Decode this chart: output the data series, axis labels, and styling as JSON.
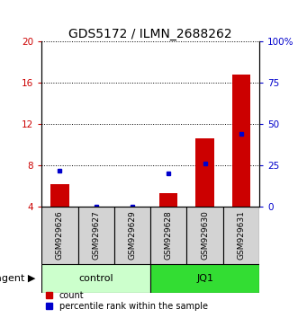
{
  "title": "GDS5172 / ILMN_2688262",
  "samples": [
    "GSM929626",
    "GSM929627",
    "GSM929629",
    "GSM929628",
    "GSM929630",
    "GSM929631"
  ],
  "groups": [
    "control",
    "control",
    "control",
    "JQ1",
    "JQ1",
    "JQ1"
  ],
  "count_values": [
    6.2,
    4.05,
    4.05,
    5.3,
    10.6,
    16.8
  ],
  "percentile_values": [
    22.0,
    0.0,
    0.0,
    20.0,
    26.0,
    44.0
  ],
  "ylim_left": [
    4,
    20
  ],
  "ylim_right": [
    0,
    100
  ],
  "yticks_left": [
    4,
    8,
    12,
    16,
    20
  ],
  "yticks_right": [
    0,
    25,
    50,
    75,
    100
  ],
  "ytick_labels_left": [
    "4",
    "8",
    "12",
    "16",
    "20"
  ],
  "ytick_labels_right": [
    "0",
    "25",
    "50",
    "75",
    "100%"
  ],
  "bar_width": 0.5,
  "count_color": "#cc0000",
  "percentile_color": "#0000cc",
  "group_colors": {
    "control": "#ccffcc",
    "JQ1": "#33dd33"
  },
  "group_label": "agent",
  "legend_labels": [
    "count",
    "percentile rank within the sample"
  ],
  "background_color": "#ffffff",
  "plot_bg_color": "#ffffff",
  "sample_bg_color": "#d3d3d3",
  "font_size_title": 10,
  "font_size_ticks": 7.5,
  "font_size_legend": 7,
  "font_size_group": 8,
  "font_size_sample": 6.5
}
